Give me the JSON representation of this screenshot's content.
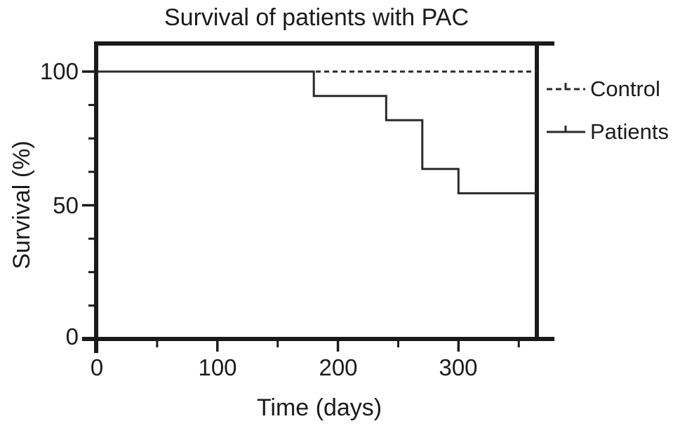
{
  "title": "Survival of patients with PAC",
  "x_axis": {
    "label": "Time (days)",
    "tick_labels": [
      "0",
      "100",
      "200",
      "300"
    ],
    "major_ticks": [
      0,
      100,
      200,
      300
    ],
    "minor_ticks": [
      50,
      150,
      250,
      350
    ],
    "range": [
      0,
      365
    ]
  },
  "y_axis": {
    "label": "Survival (%)",
    "tick_labels": [
      "100",
      "50",
      "0"
    ],
    "major_ticks": [
      100,
      50,
      0
    ],
    "minor_ticks": [
      87.5,
      75,
      62.5,
      37.5,
      25,
      12.5
    ],
    "range": [
      0,
      110
    ]
  },
  "legend": {
    "position": "right-outside",
    "items": [
      {
        "label": "Control",
        "style": "dashed"
      },
      {
        "label": "Patients",
        "style": "solid"
      }
    ]
  },
  "colors": {
    "line": "#2a2a2a",
    "frame": "#1a1a1a",
    "text": "#1b1b1b",
    "background": "#ffffff"
  },
  "chart_data": {
    "type": "line",
    "subtype": "kaplan-meier-step",
    "title": "Survival of patients with PAC",
    "xlabel": "Time (days)",
    "ylabel": "Survival (%)",
    "xlim": [
      0,
      365
    ],
    "ylim": [
      0,
      110
    ],
    "grid": false,
    "legend_position": "right-outside",
    "series": [
      {
        "name": "Control",
        "style": "dashed",
        "points": [
          [
            0,
            100
          ],
          [
            365,
            100
          ]
        ]
      },
      {
        "name": "Patients",
        "style": "solid",
        "points": [
          [
            0,
            100
          ],
          [
            180,
            100
          ],
          [
            180,
            90.9
          ],
          [
            240,
            90.9
          ],
          [
            240,
            81.8
          ],
          [
            270,
            81.8
          ],
          [
            270,
            63.6
          ],
          [
            300,
            63.6
          ],
          [
            300,
            54.5
          ],
          [
            365,
            54.5
          ]
        ],
        "event_times_days": [
          180,
          240,
          270,
          300
        ],
        "survival_after_events_pct": [
          90.9,
          81.8,
          63.6,
          54.5
        ]
      }
    ]
  }
}
